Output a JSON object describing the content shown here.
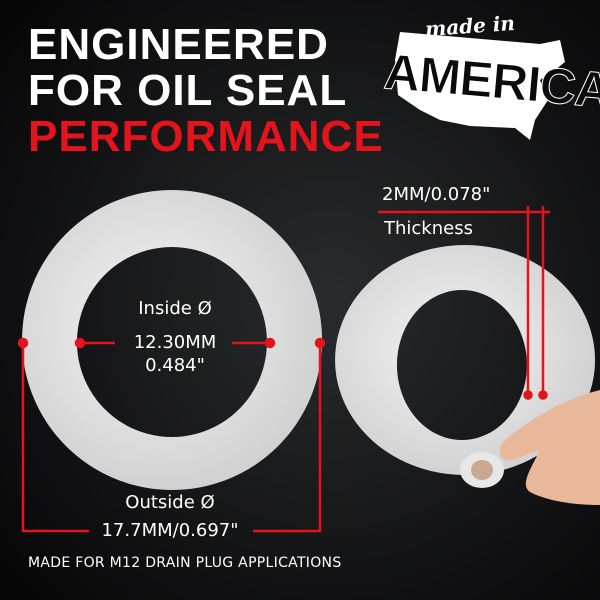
{
  "headline": {
    "line1": "ENGINEERED",
    "line2": "FOR OIL SEAL",
    "line3": "PERFORMANCE"
  },
  "badge": {
    "script": "made in",
    "word": "AMERICA"
  },
  "thickness": {
    "value": "2MM/0.078\"",
    "label": "Thickness"
  },
  "inside": {
    "label": "Inside Ø",
    "mm": "12.30MM",
    "inch": "0.484\""
  },
  "outside": {
    "label": "Outside Ø",
    "value": "17.7MM/0.697\""
  },
  "footer": "MADE FOR M12 DRAIN PLUG APPLICATIONS",
  "colors": {
    "accent": "#e3141b",
    "background": "#0b0b0c",
    "text": "#ffffff"
  }
}
